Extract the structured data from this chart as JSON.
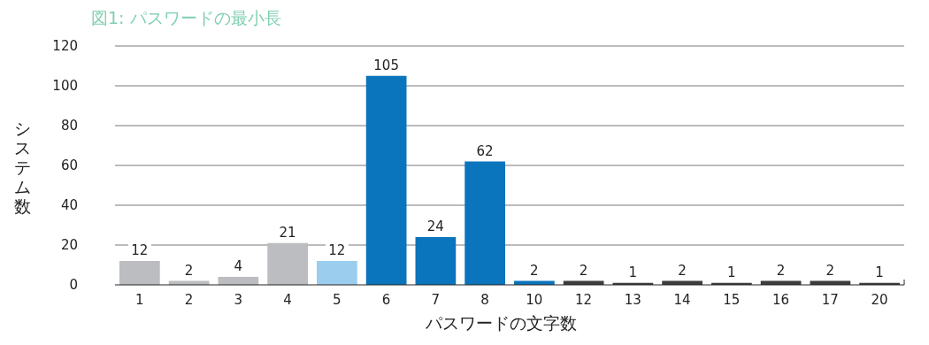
{
  "chart_data": {
    "type": "bar",
    "title": "図1: パスワードの最小長",
    "xlabel": "パスワードの文字数",
    "ylabel": "システム数",
    "categories": [
      "1",
      "2",
      "3",
      "4",
      "5",
      "6",
      "7",
      "8",
      "10",
      "12",
      "13",
      "14",
      "15",
      "16",
      "17",
      "20"
    ],
    "values": [
      12,
      2,
      4,
      21,
      12,
      105,
      24,
      62,
      2,
      2,
      1,
      2,
      1,
      2,
      2,
      1
    ],
    "colors": [
      "#bcbdc0",
      "#bcbdc0",
      "#bcbdc0",
      "#bcbdc0",
      "#9bcdee",
      "#0a74bc",
      "#0a74bc",
      "#0a74bc",
      "#0a74bc",
      "#3d3d3d",
      "#3d3d3d",
      "#3d3d3d",
      "#3d3d3d",
      "#3d3d3d",
      "#3d3d3d",
      "#3d3d3d"
    ],
    "ylim": [
      0,
      120
    ],
    "yticks": [
      0,
      20,
      40,
      60,
      80,
      100,
      120
    ],
    "grid": "y",
    "data_labels": true
  }
}
